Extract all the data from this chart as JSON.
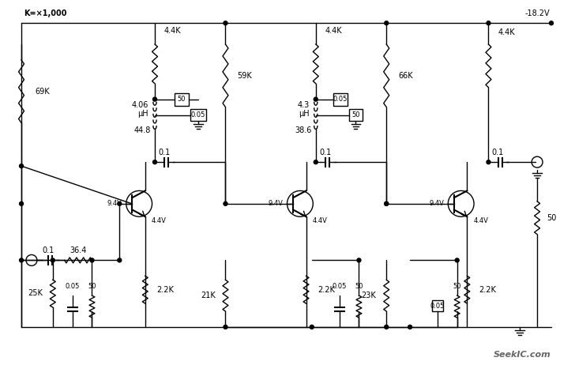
{
  "bg_color": "#ffffff",
  "line_color": "#000000",
  "text_color": "#000000",
  "font_size": 7,
  "watermark": "SeekIC.com",
  "k_note": "K=×1,000",
  "voltage": "-18.2V",
  "r_69k": "69K",
  "r_4_4k_1": "4.4K",
  "r_4_4k_2": "4.4K",
  "r_4_4k_3": "4.4K",
  "l_4_06": "4.06",
  "l_4_06_uh": "μH",
  "l_44_8": "44.8",
  "c_50_1": "50",
  "c_005_1": "0.05",
  "c_01_1": "0.1",
  "v_9_4_1": "9.4V",
  "v_4_4_1": "4.4V",
  "r_36_4": "36.4",
  "r_25k": "25K",
  "c_005_2": "0.05",
  "c_50_2": "50",
  "r_2_2k_1": "2.2K",
  "r_59k": "59K",
  "l_4_3": "4.3",
  "l_4_3_uh": "μH",
  "l_38_6": "38.6",
  "c_005_3": "0.05",
  "c_50_3": "50",
  "c_01_2": "0.1",
  "v_9_4_2": "9.4V",
  "v_4_4_2": "4.4V",
  "r_21k": "21K",
  "r_2_2k_2": "2.2K",
  "c_005_4": "0.05",
  "c_50_4": "50",
  "r_66k": "66K",
  "c_01_3": "0.1",
  "v_9_4_3": "9.4V",
  "v_4_4_3": "4.4V",
  "r_23k": "23K",
  "r_2_2k_3": "2.2K",
  "c_005_5": "0.05",
  "c_50_5": "50",
  "r_out": "50",
  "c_01_in": "0.1"
}
